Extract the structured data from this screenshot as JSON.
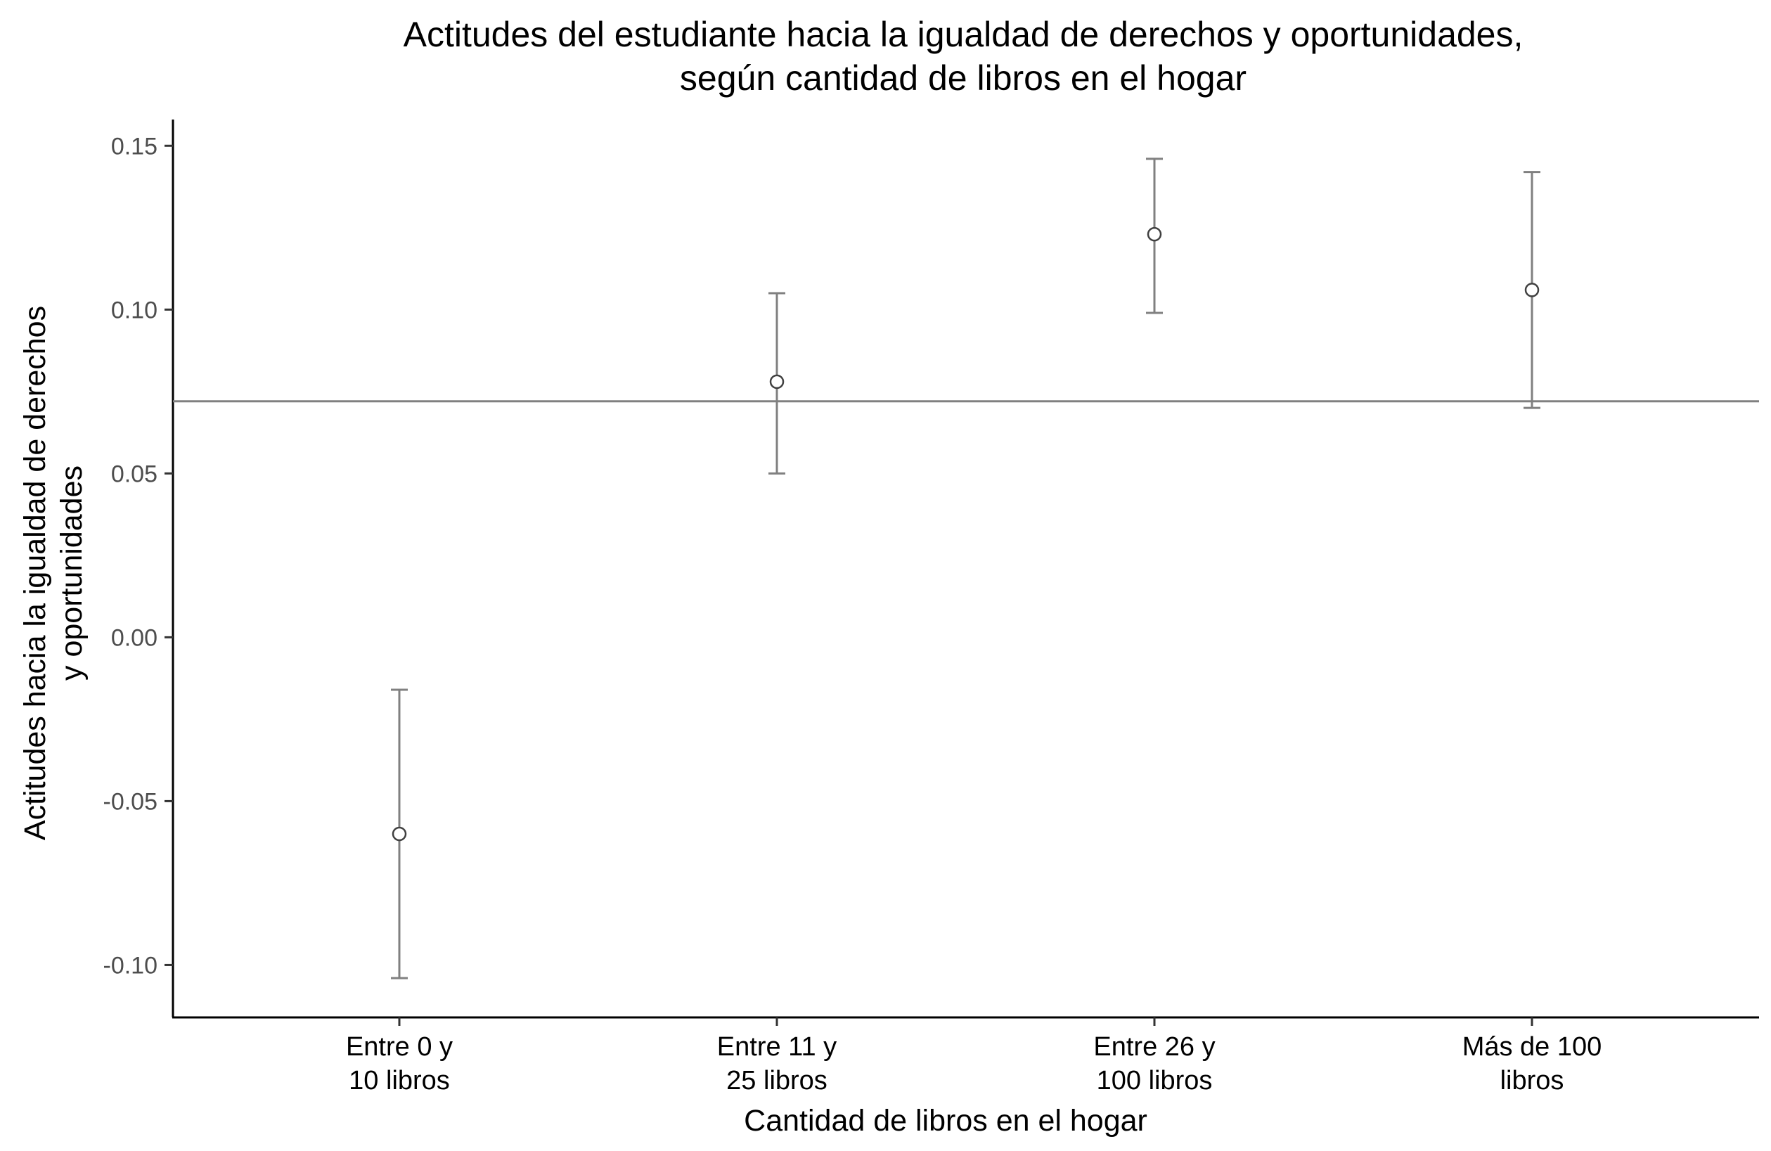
{
  "chart_data": {
    "type": "errorbar",
    "title": [
      "Actitudes del estudiante hacia la igualdad de derechos y oportunidades,",
      "según cantidad de libros en el hogar"
    ],
    "xlabel": "Cantidad de libros en el hogar",
    "ylabel": [
      "Actitudes hacia la igualdad de derechos",
      "y oportunidades"
    ],
    "categories": [
      [
        "Entre 0 y",
        "10 libros"
      ],
      [
        "Entre 11 y",
        "25 libros"
      ],
      [
        "Entre 26 y",
        "100 libros"
      ],
      [
        "Más de 100",
        "libros"
      ]
    ],
    "values": [
      -0.06,
      0.078,
      0.123,
      0.106
    ],
    "lower": [
      -0.104,
      0.05,
      0.099,
      0.07
    ],
    "upper": [
      -0.016,
      0.105,
      0.146,
      0.142
    ],
    "reference_line": 0.072,
    "ylim": [
      -0.116,
      0.158
    ],
    "yticks": [
      -0.1,
      -0.05,
      0.0,
      0.05,
      0.1,
      0.15
    ],
    "ytick_labels": [
      "-0.10",
      "-0.05",
      "0.00",
      "0.05",
      "0.10",
      "0.15"
    ],
    "grid": false,
    "colors": {
      "line": "#808080",
      "point_fill": "#ffffff",
      "point_stroke": "#404040",
      "axis": "#000000"
    }
  }
}
